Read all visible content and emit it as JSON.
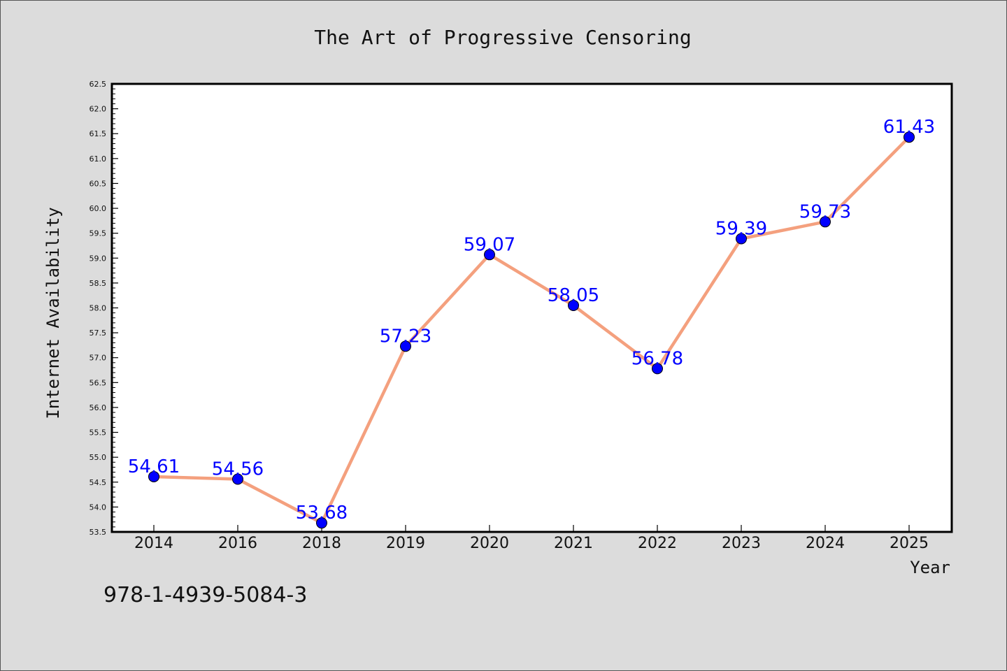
{
  "chart_data": {
    "type": "line",
    "title": "The Art of Progressive Censoring",
    "xlabel": "Year",
    "ylabel": "Internet Availability",
    "categories": [
      "2014",
      "2016",
      "2018",
      "2019",
      "2020",
      "2021",
      "2022",
      "2023",
      "2024",
      "2025"
    ],
    "values": [
      54.61,
      54.56,
      53.68,
      57.23,
      59.07,
      58.05,
      56.78,
      59.39,
      59.73,
      61.43
    ],
    "data_labels": [
      "54.61",
      "54.56",
      "53.68",
      "57.23",
      "59.07",
      "58.05",
      "56.78",
      "59.39",
      "59.73",
      "61.43"
    ],
    "ylim": [
      53.5,
      62.5
    ],
    "ytick_labels": [
      "53.5",
      "54.0",
      "54.5",
      "55.0",
      "55.5",
      "56.0",
      "56.5",
      "57.0",
      "57.5",
      "58.0",
      "58.5",
      "59.0",
      "59.5",
      "60.0",
      "60.5",
      "61.0",
      "61.5",
      "62.0",
      "62.5"
    ],
    "grid": false,
    "line_color": "#f4a07e",
    "marker_color": "#0000ff",
    "label_color": "#0000ff"
  },
  "footer": {
    "isbn": "978-1-4939-5084-3"
  }
}
